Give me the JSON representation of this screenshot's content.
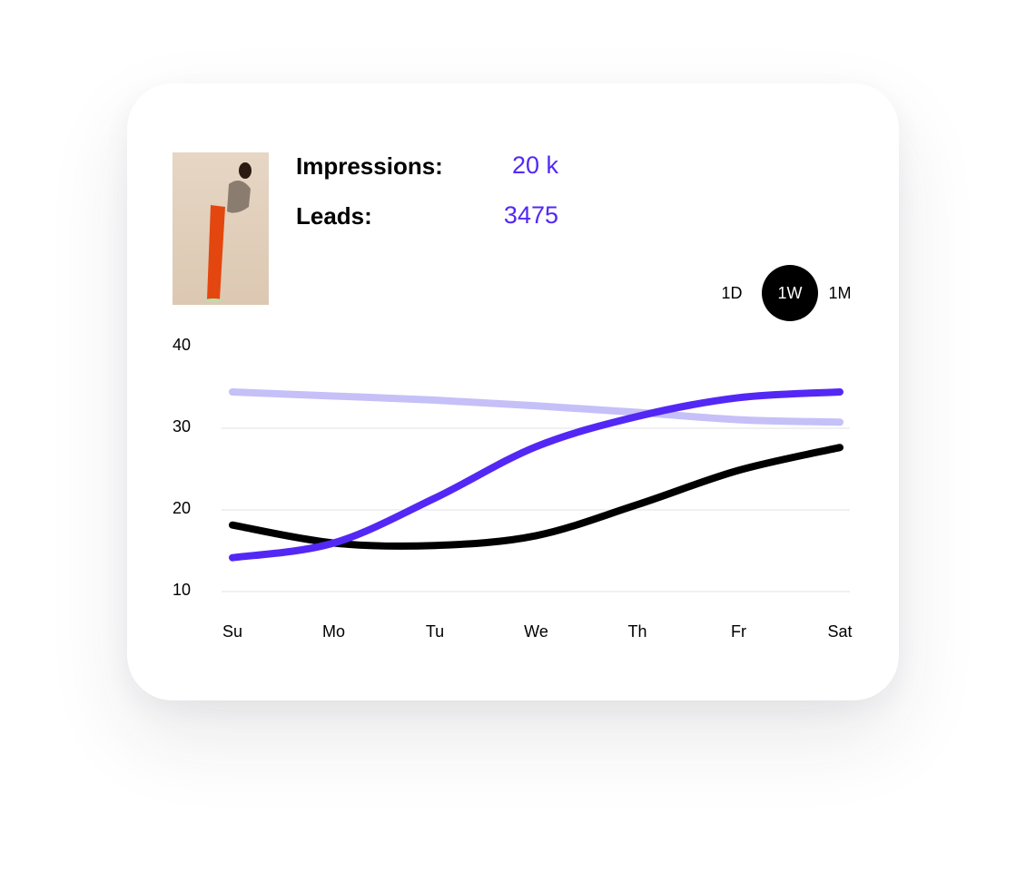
{
  "stats": {
    "impressions_label": "Impressions:",
    "impressions_value": "20 k",
    "leads_label": "Leads:",
    "leads_value": "3475"
  },
  "range_toggle": {
    "options": [
      "1D",
      "1W",
      "1M"
    ],
    "selected": "1W"
  },
  "colors": {
    "accent": "#5328f5",
    "light": "#c5c0f7",
    "dark": "#000000"
  },
  "chart_data": {
    "type": "line",
    "categories": [
      "Su",
      "Mo",
      "Tu",
      "We",
      "Th",
      "Fr",
      "Sat"
    ],
    "ylim": [
      10,
      40
    ],
    "yticks": [
      40,
      30,
      20,
      10
    ],
    "grid": true,
    "series": [
      {
        "color": "#c5c0f7",
        "values": [
          34,
          33.5,
          33,
          32.3,
          31.5,
          30.6,
          30.3
        ]
      },
      {
        "color": "#000000",
        "values": [
          17.7,
          15.5,
          15.2,
          16.4,
          20.2,
          24.4,
          27.2
        ]
      },
      {
        "color": "#5328f5",
        "values": [
          13.7,
          15.5,
          21,
          27.3,
          31,
          33.3,
          34
        ]
      }
    ]
  }
}
